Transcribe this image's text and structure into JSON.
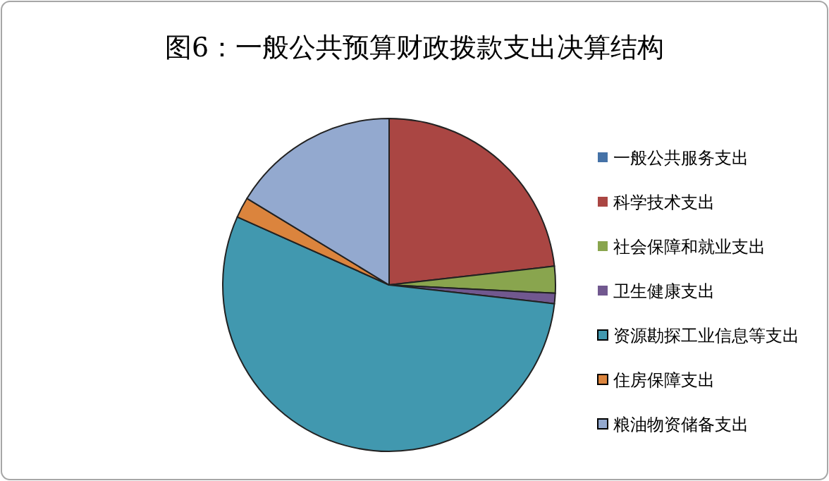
{
  "chart_data": {
    "type": "pie",
    "title": "图6：一般公共预算财政拨款支出决算结构",
    "categories": [
      "一般公共服务支出",
      "科学技术支出",
      "社会保障和就业支出",
      "卫生健康支出",
      "资源勘探工业信息等支出",
      "住房保障支出",
      "粮油物资储备支出"
    ],
    "values": [
      0,
      23.2,
      2.6,
      1,
      54.9,
      2,
      16.3
    ],
    "colors": [
      "#4572a7",
      "#aa4643",
      "#89a54e",
      "#71588f",
      "#4198af",
      "#db843d",
      "#93a9cf"
    ],
    "legend": "right"
  }
}
